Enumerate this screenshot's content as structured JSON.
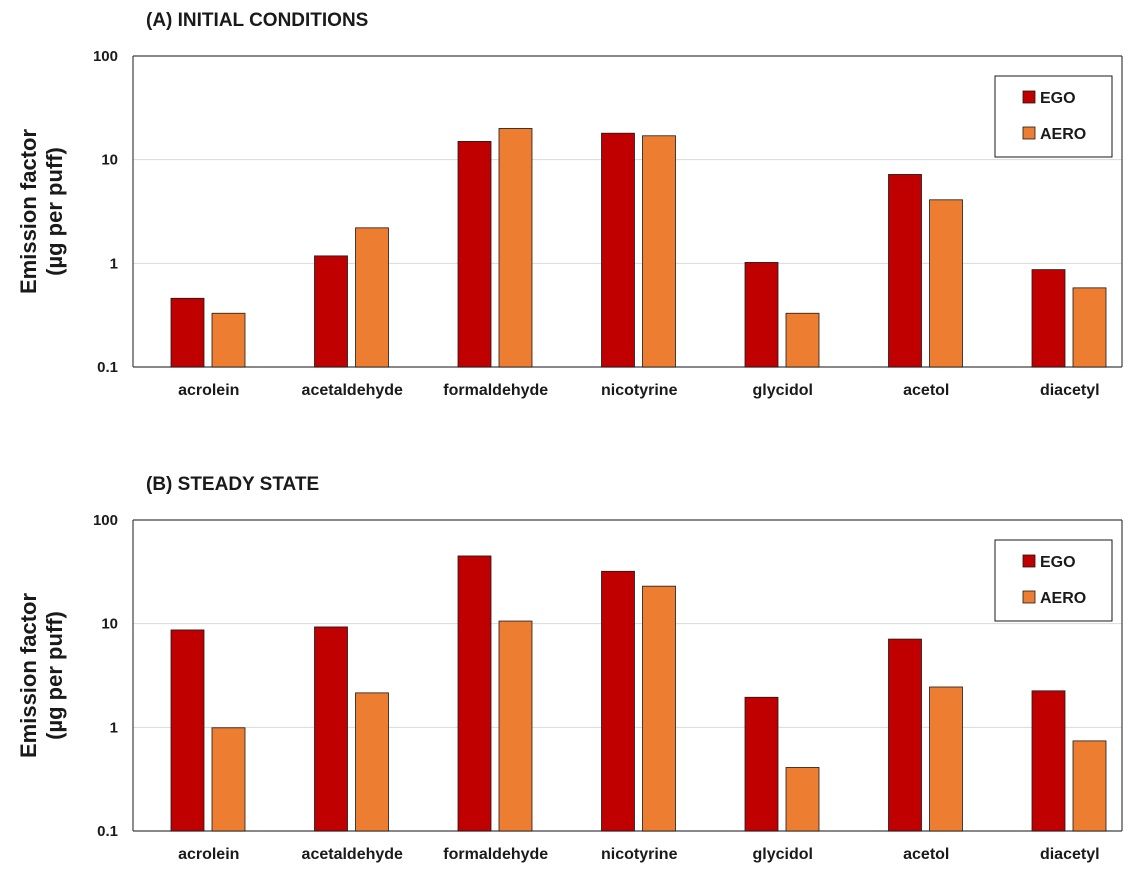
{
  "chart_data": [
    {
      "type": "bar",
      "title": "(A) INITIAL CONDITIONS",
      "ylabel_line1": "Emission factor",
      "ylabel_line2": "(µg per puff)",
      "yscale": "log",
      "ylim": [
        0.1,
        100
      ],
      "yticks": [
        "0.1",
        "1",
        "10",
        "100"
      ],
      "grid": true,
      "legend_position": "top-right",
      "categories": [
        "acrolein",
        "acetaldehyde",
        "formaldehyde",
        "nicotyrine",
        "glycidol",
        "acetol",
        "diacetyl"
      ],
      "series": [
        {
          "name": "EGO",
          "color": "#c00000",
          "values": [
            0.46,
            1.18,
            15,
            18,
            1.02,
            7.2,
            0.87
          ]
        },
        {
          "name": "AERO",
          "color": "#ed7d31",
          "values": [
            0.33,
            2.2,
            20,
            17,
            0.33,
            4.1,
            0.58
          ]
        }
      ]
    },
    {
      "type": "bar",
      "title": "(B) STEADY STATE",
      "ylabel_line1": "Emission factor",
      "ylabel_line2": "(µg per puff)",
      "yscale": "log",
      "ylim": [
        0.1,
        100
      ],
      "yticks": [
        "0.1",
        "1",
        "10",
        "100"
      ],
      "grid": true,
      "legend_position": "top-right",
      "categories": [
        "acrolein",
        "acetaldehyde",
        "formaldehyde",
        "nicotyrine",
        "glycidol",
        "acetol",
        "diacetyl"
      ],
      "series": [
        {
          "name": "EGO",
          "color": "#c00000",
          "values": [
            8.7,
            9.3,
            45,
            32,
            1.95,
            7.1,
            2.25
          ]
        },
        {
          "name": "AERO",
          "color": "#ed7d31",
          "values": [
            0.99,
            2.15,
            10.6,
            23,
            0.41,
            2.45,
            0.74
          ]
        }
      ]
    }
  ]
}
